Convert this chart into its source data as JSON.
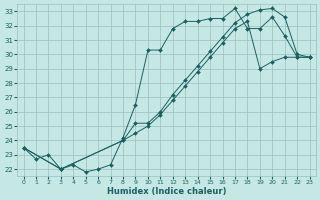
{
  "xlabel": "Humidex (Indice chaleur)",
  "bg_color": "#c5e8e5",
  "grid_color": "#9dbfbc",
  "line_color": "#1a6060",
  "xlim": [
    -0.5,
    23.5
  ],
  "ylim": [
    21.5,
    33.5
  ],
  "xticks": [
    0,
    1,
    2,
    3,
    4,
    5,
    6,
    7,
    8,
    9,
    10,
    11,
    12,
    13,
    14,
    15,
    16,
    17,
    18,
    19,
    20,
    21,
    22,
    23
  ],
  "yticks": [
    22,
    23,
    24,
    25,
    26,
    27,
    28,
    29,
    30,
    31,
    32,
    33
  ],
  "line1_x": [
    0,
    1,
    2,
    3,
    4,
    5,
    6,
    7,
    8,
    9,
    10,
    11,
    12,
    13,
    14,
    15,
    16,
    17,
    18,
    19,
    20,
    21,
    22,
    23
  ],
  "line1_y": [
    23.5,
    22.7,
    23.0,
    22.0,
    22.3,
    21.8,
    22.0,
    22.3,
    24.2,
    26.5,
    30.3,
    30.3,
    31.8,
    32.3,
    32.3,
    32.5,
    32.5,
    33.2,
    31.8,
    31.8,
    32.6,
    31.3,
    29.8,
    29.8
  ],
  "line2_x": [
    0,
    3,
    8,
    9,
    10,
    11,
    12,
    13,
    14,
    15,
    16,
    17,
    18,
    19,
    20,
    21,
    22,
    23
  ],
  "line2_y": [
    23.5,
    22.0,
    24.0,
    25.2,
    25.2,
    26.0,
    27.2,
    28.2,
    29.2,
    30.2,
    31.2,
    32.2,
    32.8,
    33.1,
    33.2,
    32.6,
    30.0,
    29.8
  ],
  "line3_x": [
    0,
    3,
    8,
    9,
    10,
    11,
    12,
    13,
    14,
    15,
    16,
    17,
    18,
    19,
    20,
    21,
    22,
    23
  ],
  "line3_y": [
    23.5,
    22.0,
    24.0,
    24.5,
    25.0,
    25.8,
    26.8,
    27.8,
    28.8,
    29.8,
    30.8,
    31.8,
    32.3,
    29.0,
    29.5,
    29.8,
    29.8,
    29.8
  ]
}
